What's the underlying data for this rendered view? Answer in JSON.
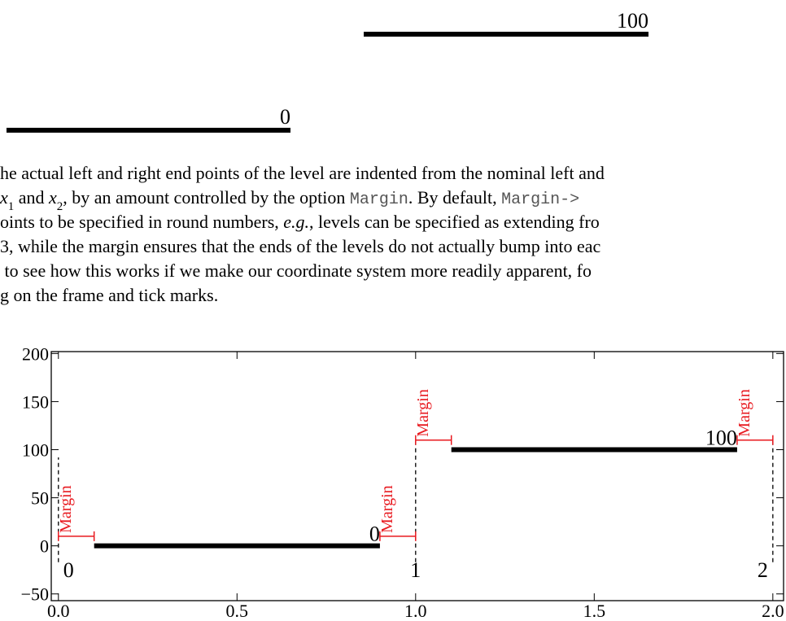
{
  "top_figure": {
    "labels": [
      "100",
      "0"
    ]
  },
  "paragraph": {
    "lines": [
      [
        {
          "text": "he actual left and right end points of the level are indented from the nominal left and"
        }
      ],
      [
        {
          "text": "x",
          "style": "italic"
        },
        {
          "text": "1",
          "style": "sub"
        },
        {
          "text": " and "
        },
        {
          "text": "x",
          "style": "italic"
        },
        {
          "text": "2",
          "style": "sub"
        },
        {
          "text": ", by an amount controlled by the option "
        },
        {
          "text": "Margin",
          "style": "mono"
        },
        {
          "text": ". By default, "
        },
        {
          "text": "Margin->",
          "style": "mono"
        }
      ],
      [
        {
          "text": "oints to be specified in round numbers, "
        },
        {
          "text": "e.g.",
          "style": "italic"
        },
        {
          "text": ", levels can be specified as extending fro"
        }
      ],
      [
        {
          "text": "3, while the margin ensures that the ends of the levels do not actually bump into eac"
        }
      ],
      [
        {
          "text": " to see how this works if we make our coordinate system more readily apparent, fo"
        }
      ],
      [
        {
          "text": "g on the frame and tick marks."
        }
      ]
    ]
  },
  "chart_data": {
    "type": "level",
    "levels": [
      {
        "x": [
          0.1,
          0.9
        ],
        "value": 0
      },
      {
        "x": [
          1.1,
          1.9
        ],
        "value": 100
      }
    ],
    "margin_label": "Margin",
    "margins": [
      {
        "x": [
          0,
          0.1
        ],
        "y": 10
      },
      {
        "x": [
          0.9,
          1.0
        ],
        "y": 10
      },
      {
        "x": [
          1.0,
          1.1
        ],
        "y": 110
      },
      {
        "x": [
          1.9,
          2.0
        ],
        "y": 110
      }
    ],
    "boundaries": [
      {
        "x": 0,
        "y": [
          -17,
          92
        ]
      },
      {
        "x": 1,
        "y": [
          -17,
          110
        ]
      },
      {
        "x": 2,
        "y": [
          -17,
          110
        ]
      }
    ],
    "margin_color": "#e8191f",
    "level_color": "#000000",
    "xlim": [
      -0.02,
      2.03
    ],
    "ylim": [
      -57,
      202
    ],
    "xticks": [
      {
        "value": 0,
        "label": "0.0"
      },
      0.5,
      {
        "value": 1,
        "label": "1.0"
      },
      1.5,
      {
        "value": 2,
        "label": "2.0"
      }
    ],
    "yticks": [
      {
        "value": -50,
        "label": "−50"
      },
      0,
      50,
      100,
      150,
      200
    ]
  }
}
